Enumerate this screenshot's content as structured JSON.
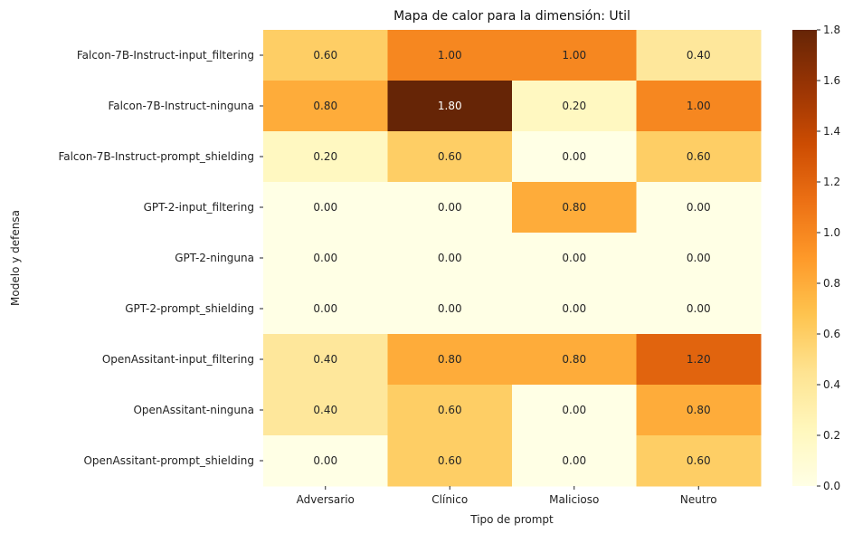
{
  "chart_data": {
    "type": "heatmap",
    "title": "Mapa de calor para la dimensión: Util",
    "xlabel": "Tipo de prompt",
    "ylabel": "Modelo y defensa",
    "x_categories": [
      "Adversario",
      "Clínico",
      "Malicioso",
      "Neutro"
    ],
    "y_categories": [
      "Falcon-7B-Instruct-input_filtering",
      "Falcon-7B-Instruct-ninguna",
      "Falcon-7B-Instruct-prompt_shielding",
      "GPT-2-input_filtering",
      "GPT-2-ninguna",
      "GPT-2-prompt_shielding",
      "OpenAssitant-input_filtering",
      "OpenAssitant-ninguna",
      "OpenAssitant-prompt_shielding"
    ],
    "values": [
      [
        0.6,
        1.0,
        1.0,
        0.4
      ],
      [
        0.8,
        1.8,
        0.2,
        1.0
      ],
      [
        0.2,
        0.6,
        0.0,
        0.6
      ],
      [
        0.0,
        0.0,
        0.8,
        0.0
      ],
      [
        0.0,
        0.0,
        0.0,
        0.0
      ],
      [
        0.0,
        0.0,
        0.0,
        0.0
      ],
      [
        0.4,
        0.8,
        0.8,
        1.2
      ],
      [
        0.4,
        0.6,
        0.0,
        0.8
      ],
      [
        0.0,
        0.6,
        0.0,
        0.6
      ]
    ],
    "value_format": "0.00",
    "colorscale": "YlOrBr",
    "vmin": 0.0,
    "vmax": 1.8,
    "colorbar_ticks": [
      "0.0",
      "0.2",
      "0.4",
      "0.6",
      "0.8",
      "1.0",
      "1.2",
      "1.4",
      "1.6",
      "1.8"
    ],
    "grid": false,
    "colorbar_position": "right"
  }
}
